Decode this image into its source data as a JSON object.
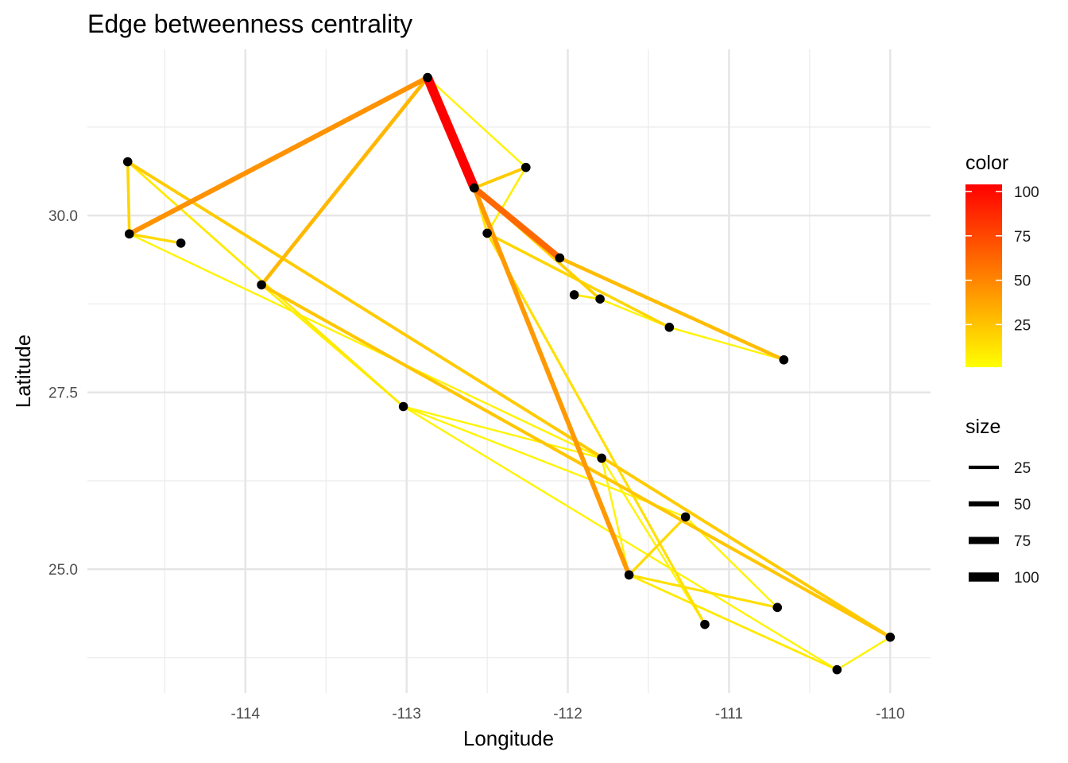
{
  "chart_data": {
    "type": "network-map",
    "title": "Edge betweenness centrality",
    "xlabel": "Longitude",
    "ylabel": "Latitude",
    "xlim": [
      -114.98,
      -109.75
    ],
    "ylim": [
      23.25,
      32.35
    ],
    "x_ticks": [
      -114,
      -113,
      -112,
      -111,
      -110
    ],
    "x_tick_labels": [
      "-114",
      "-113",
      "-112",
      "-111",
      "-110"
    ],
    "y_ticks": [
      25.0,
      27.5,
      30.0
    ],
    "y_tick_labels": [
      "25.0",
      "27.5",
      "30.0"
    ],
    "grid": true,
    "nodes": [
      {
        "x": -112.87,
        "y": 31.95
      },
      {
        "x": -114.73,
        "y": 30.76
      },
      {
        "x": -114.72,
        "y": 29.74
      },
      {
        "x": -114.4,
        "y": 29.61
      },
      {
        "x": -113.9,
        "y": 29.02
      },
      {
        "x": -112.26,
        "y": 30.68
      },
      {
        "x": -112.58,
        "y": 30.39
      },
      {
        "x": -112.5,
        "y": 29.75
      },
      {
        "x": -112.05,
        "y": 29.4
      },
      {
        "x": -111.96,
        "y": 28.88
      },
      {
        "x": -111.8,
        "y": 28.82
      },
      {
        "x": -111.37,
        "y": 28.42
      },
      {
        "x": -110.66,
        "y": 27.96
      },
      {
        "x": -113.02,
        "y": 27.3
      },
      {
        "x": -111.79,
        "y": 26.57
      },
      {
        "x": -111.27,
        "y": 25.74
      },
      {
        "x": -111.62,
        "y": 24.92
      },
      {
        "x": -110.7,
        "y": 24.46
      },
      {
        "x": -111.15,
        "y": 24.22
      },
      {
        "x": -110.0,
        "y": 24.04
      },
      {
        "x": -110.33,
        "y": 23.58
      }
    ],
    "edges": [
      {
        "from": 0,
        "to": 6,
        "betweenness": 104
      },
      {
        "from": 0,
        "to": 2,
        "betweenness": 45
      },
      {
        "from": 0,
        "to": 4,
        "betweenness": 30
      },
      {
        "from": 6,
        "to": 16,
        "betweenness": 42
      },
      {
        "from": 6,
        "to": 8,
        "betweenness": 62
      },
      {
        "from": 6,
        "to": 5,
        "betweenness": 22
      },
      {
        "from": 6,
        "to": 10,
        "betweenness": 20
      },
      {
        "from": 6,
        "to": 7,
        "betweenness": 12
      },
      {
        "from": 5,
        "to": 7,
        "betweenness": 8
      },
      {
        "from": 5,
        "to": 0,
        "betweenness": 6
      },
      {
        "from": 7,
        "to": 18,
        "betweenness": 14
      },
      {
        "from": 7,
        "to": 11,
        "betweenness": 18
      },
      {
        "from": 8,
        "to": 12,
        "betweenness": 28
      },
      {
        "from": 9,
        "to": 10,
        "betweenness": 10
      },
      {
        "from": 10,
        "to": 11,
        "betweenness": 6
      },
      {
        "from": 11,
        "to": 12,
        "betweenness": 6
      },
      {
        "from": 1,
        "to": 2,
        "betweenness": 18
      },
      {
        "from": 1,
        "to": 19,
        "betweenness": 22
      },
      {
        "from": 1,
        "to": 13,
        "betweenness": 10
      },
      {
        "from": 2,
        "to": 3,
        "betweenness": 16
      },
      {
        "from": 2,
        "to": 14,
        "betweenness": 6
      },
      {
        "from": 4,
        "to": 19,
        "betweenness": 24
      },
      {
        "from": 4,
        "to": 13,
        "betweenness": 8
      },
      {
        "from": 13,
        "to": 14,
        "betweenness": 6
      },
      {
        "from": 13,
        "to": 15,
        "betweenness": 6
      },
      {
        "from": 13,
        "to": 20,
        "betweenness": 6
      },
      {
        "from": 14,
        "to": 16,
        "betweenness": 6
      },
      {
        "from": 14,
        "to": 18,
        "betweenness": 6
      },
      {
        "from": 15,
        "to": 16,
        "betweenness": 16
      },
      {
        "from": 15,
        "to": 17,
        "betweenness": 6
      },
      {
        "from": 16,
        "to": 17,
        "betweenness": 14
      },
      {
        "from": 16,
        "to": 20,
        "betweenness": 10
      },
      {
        "from": 19,
        "to": 20,
        "betweenness": 6
      }
    ],
    "color_scale": {
      "low": "#FFFF00",
      "high": "#FF0000",
      "range": [
        1,
        104
      ]
    },
    "legends": {
      "color": {
        "title": "color",
        "ticks": [
          25,
          50,
          75,
          100
        ],
        "tick_labels": [
          "25",
          "50",
          "75",
          "100"
        ]
      },
      "size": {
        "title": "size",
        "values": [
          25,
          50,
          75,
          100
        ],
        "labels": [
          "25",
          "50",
          "75",
          "100"
        ]
      }
    }
  }
}
